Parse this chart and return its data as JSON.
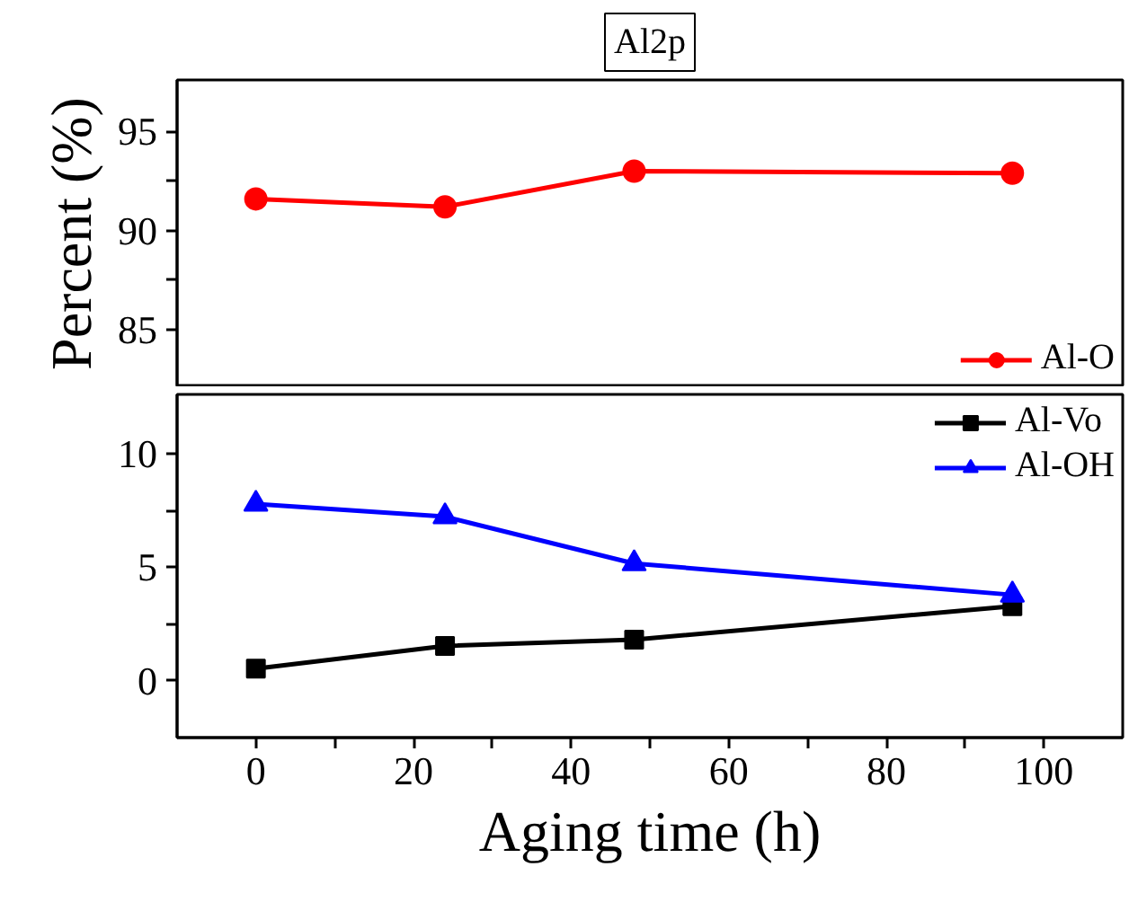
{
  "chart_data": [
    {
      "type": "line",
      "title": "Al2p",
      "ylabel": "Percent (%)",
      "x": [
        0,
        24,
        48,
        96
      ],
      "xlim": [
        -10,
        110
      ],
      "ylim": [
        82.1,
        97.6
      ],
      "tick_labels": "y",
      "legend": "bottom right",
      "yticks": [
        85,
        {
          "value": 87.5,
          "label": null
        },
        90,
        {
          "value": 92.5,
          "label": null
        },
        95
      ],
      "series": [
        {
          "name": "Al-O",
          "color": "#ff0000",
          "marker": "circle",
          "values": [
            91.6,
            91.2,
            93.0,
            92.9
          ]
        }
      ]
    },
    {
      "type": "line",
      "xlabel": "Aging time (h)",
      "x": [
        0,
        24,
        48,
        96
      ],
      "xlim": [
        -10,
        110
      ],
      "ylim": [
        -2.5,
        12.6
      ],
      "legend": "top right",
      "xticks": [
        0,
        {
          "value": 10,
          "label": null
        },
        20,
        {
          "value": 30,
          "label": null
        },
        40,
        {
          "value": 50,
          "label": null
        },
        60,
        {
          "value": 70,
          "label": null
        },
        80,
        {
          "value": 90,
          "label": null
        },
        100
      ],
      "yticks": [
        0,
        {
          "value": 2.5,
          "label": null
        },
        5,
        {
          "value": 7.5,
          "label": null
        },
        10
      ],
      "series": [
        {
          "name": "Al-Vo",
          "color": "#000000",
          "marker": "square",
          "values": [
            0.53,
            1.53,
            1.81,
            3.28
          ]
        },
        {
          "name": "Al-OH",
          "color": "#0000ff",
          "marker": "triangle",
          "values": [
            7.78,
            7.22,
            5.16,
            3.78
          ]
        }
      ]
    }
  ]
}
